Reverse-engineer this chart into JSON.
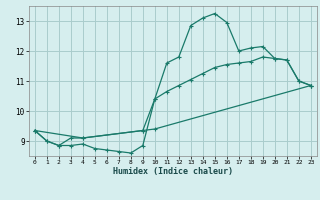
{
  "background_color": "#d6eeee",
  "grid_color": "#aacccc",
  "line_color": "#1a7a6a",
  "xlabel": "Humidex (Indice chaleur)",
  "ylim": [
    8.5,
    13.5
  ],
  "xlim": [
    -0.5,
    23.5
  ],
  "yticks": [
    9,
    10,
    11,
    12,
    13
  ],
  "xticks": [
    0,
    1,
    2,
    3,
    4,
    5,
    6,
    7,
    8,
    9,
    10,
    11,
    12,
    13,
    14,
    15,
    16,
    17,
    18,
    19,
    20,
    21,
    22,
    23
  ],
  "curve1_x": [
    0,
    1,
    2,
    3,
    4,
    5,
    6,
    7,
    8,
    9,
    10,
    11,
    12,
    13,
    14,
    15,
    16,
    17,
    18,
    19,
    20,
    21,
    22,
    23
  ],
  "curve1_y": [
    9.35,
    9.0,
    8.85,
    8.85,
    8.9,
    8.75,
    8.7,
    8.65,
    8.6,
    8.85,
    10.4,
    11.6,
    11.8,
    12.85,
    13.1,
    13.25,
    12.95,
    12.0,
    12.1,
    12.15,
    11.75,
    11.7,
    11.0,
    10.85
  ],
  "curve2_x": [
    0,
    1,
    2,
    3,
    4,
    9,
    10,
    11,
    12,
    13,
    14,
    15,
    16,
    17,
    18,
    19,
    20,
    21,
    22,
    23
  ],
  "curve2_y": [
    9.35,
    9.0,
    8.85,
    9.1,
    9.1,
    9.35,
    10.4,
    10.65,
    10.85,
    11.05,
    11.25,
    11.45,
    11.55,
    11.6,
    11.65,
    11.8,
    11.75,
    11.7,
    11.0,
    10.85
  ],
  "curve3_x": [
    0,
    4,
    9,
    10,
    23
  ],
  "curve3_y": [
    9.35,
    9.1,
    9.35,
    9.4,
    10.85
  ]
}
